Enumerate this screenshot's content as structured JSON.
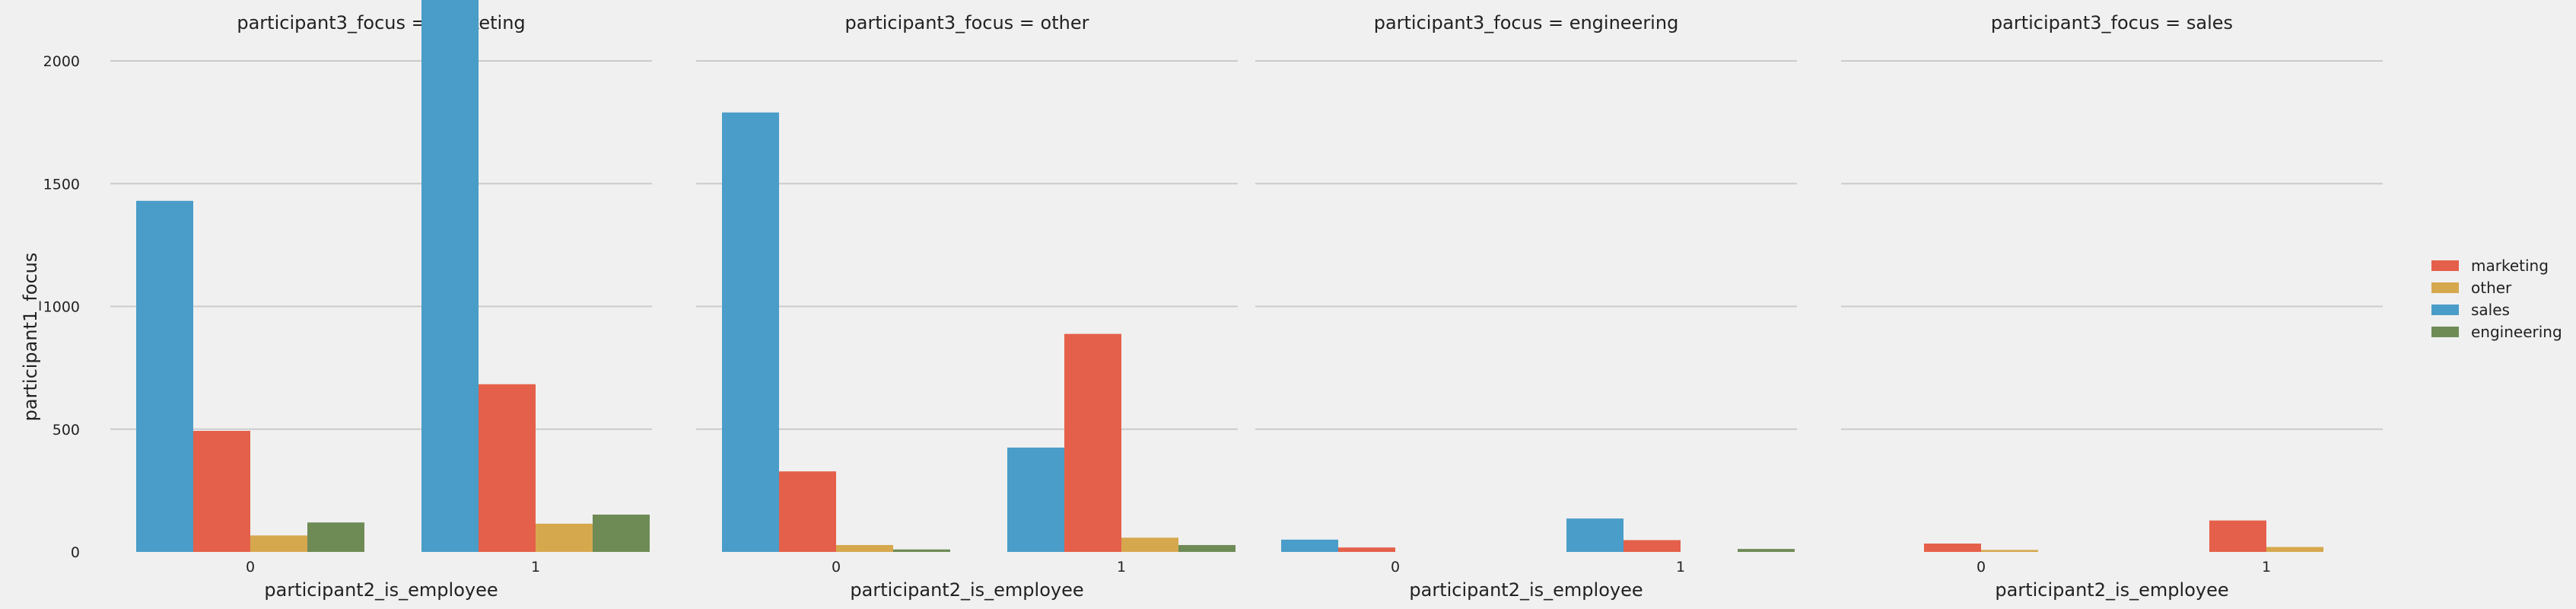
{
  "chart_data": {
    "type": "bar",
    "layout": "facet-grid",
    "y_label": "participant1_focus",
    "x_label": "participant2_is_employee",
    "categories": [
      "0",
      "1"
    ],
    "ylim": [
      0,
      2420
    ],
    "yticks": [
      0,
      500,
      1000,
      1500,
      2000
    ],
    "grid": "horizontal",
    "legend_placement": "right",
    "legend_order": [
      "marketing",
      "other",
      "sales",
      "engineering"
    ],
    "hue_order": [
      "sales",
      "marketing",
      "other",
      "engineering"
    ],
    "colors": {
      "marketing": "#e5604a",
      "other": "#d6a84e",
      "sales": "#4a9dc8",
      "engineering": "#6e8b56"
    },
    "panels": [
      {
        "title": "participant3_focus = marketing",
        "series": [
          {
            "name": "sales",
            "values": [
              1430,
              2325
            ]
          },
          {
            "name": "marketing",
            "values": [
              493,
              683
            ]
          },
          {
            "name": "other",
            "values": [
              67,
              115
            ]
          },
          {
            "name": "engineering",
            "values": [
              120,
              152
            ]
          }
        ]
      },
      {
        "title": "participant3_focus = other",
        "series": [
          {
            "name": "sales",
            "values": [
              1790,
              425
            ]
          },
          {
            "name": "marketing",
            "values": [
              328,
              888
            ]
          },
          {
            "name": "other",
            "values": [
              28,
              58
            ]
          },
          {
            "name": "engineering",
            "values": [
              10,
              28
            ]
          }
        ]
      },
      {
        "title": "participant3_focus = engineering",
        "series": [
          {
            "name": "sales",
            "values": [
              50,
              136
            ]
          },
          {
            "name": "marketing",
            "values": [
              18,
              48
            ]
          },
          {
            "name": "other",
            "values": [
              0,
              0
            ]
          },
          {
            "name": "engineering",
            "values": [
              0,
              12
            ]
          }
        ]
      },
      {
        "title": "participant3_focus = sales",
        "series": [
          {
            "name": "sales",
            "values": [
              0,
              0
            ]
          },
          {
            "name": "marketing",
            "values": [
              34,
              128
            ]
          },
          {
            "name": "other",
            "values": [
              8,
              20
            ]
          },
          {
            "name": "engineering",
            "values": [
              0,
              0
            ]
          }
        ]
      }
    ]
  }
}
